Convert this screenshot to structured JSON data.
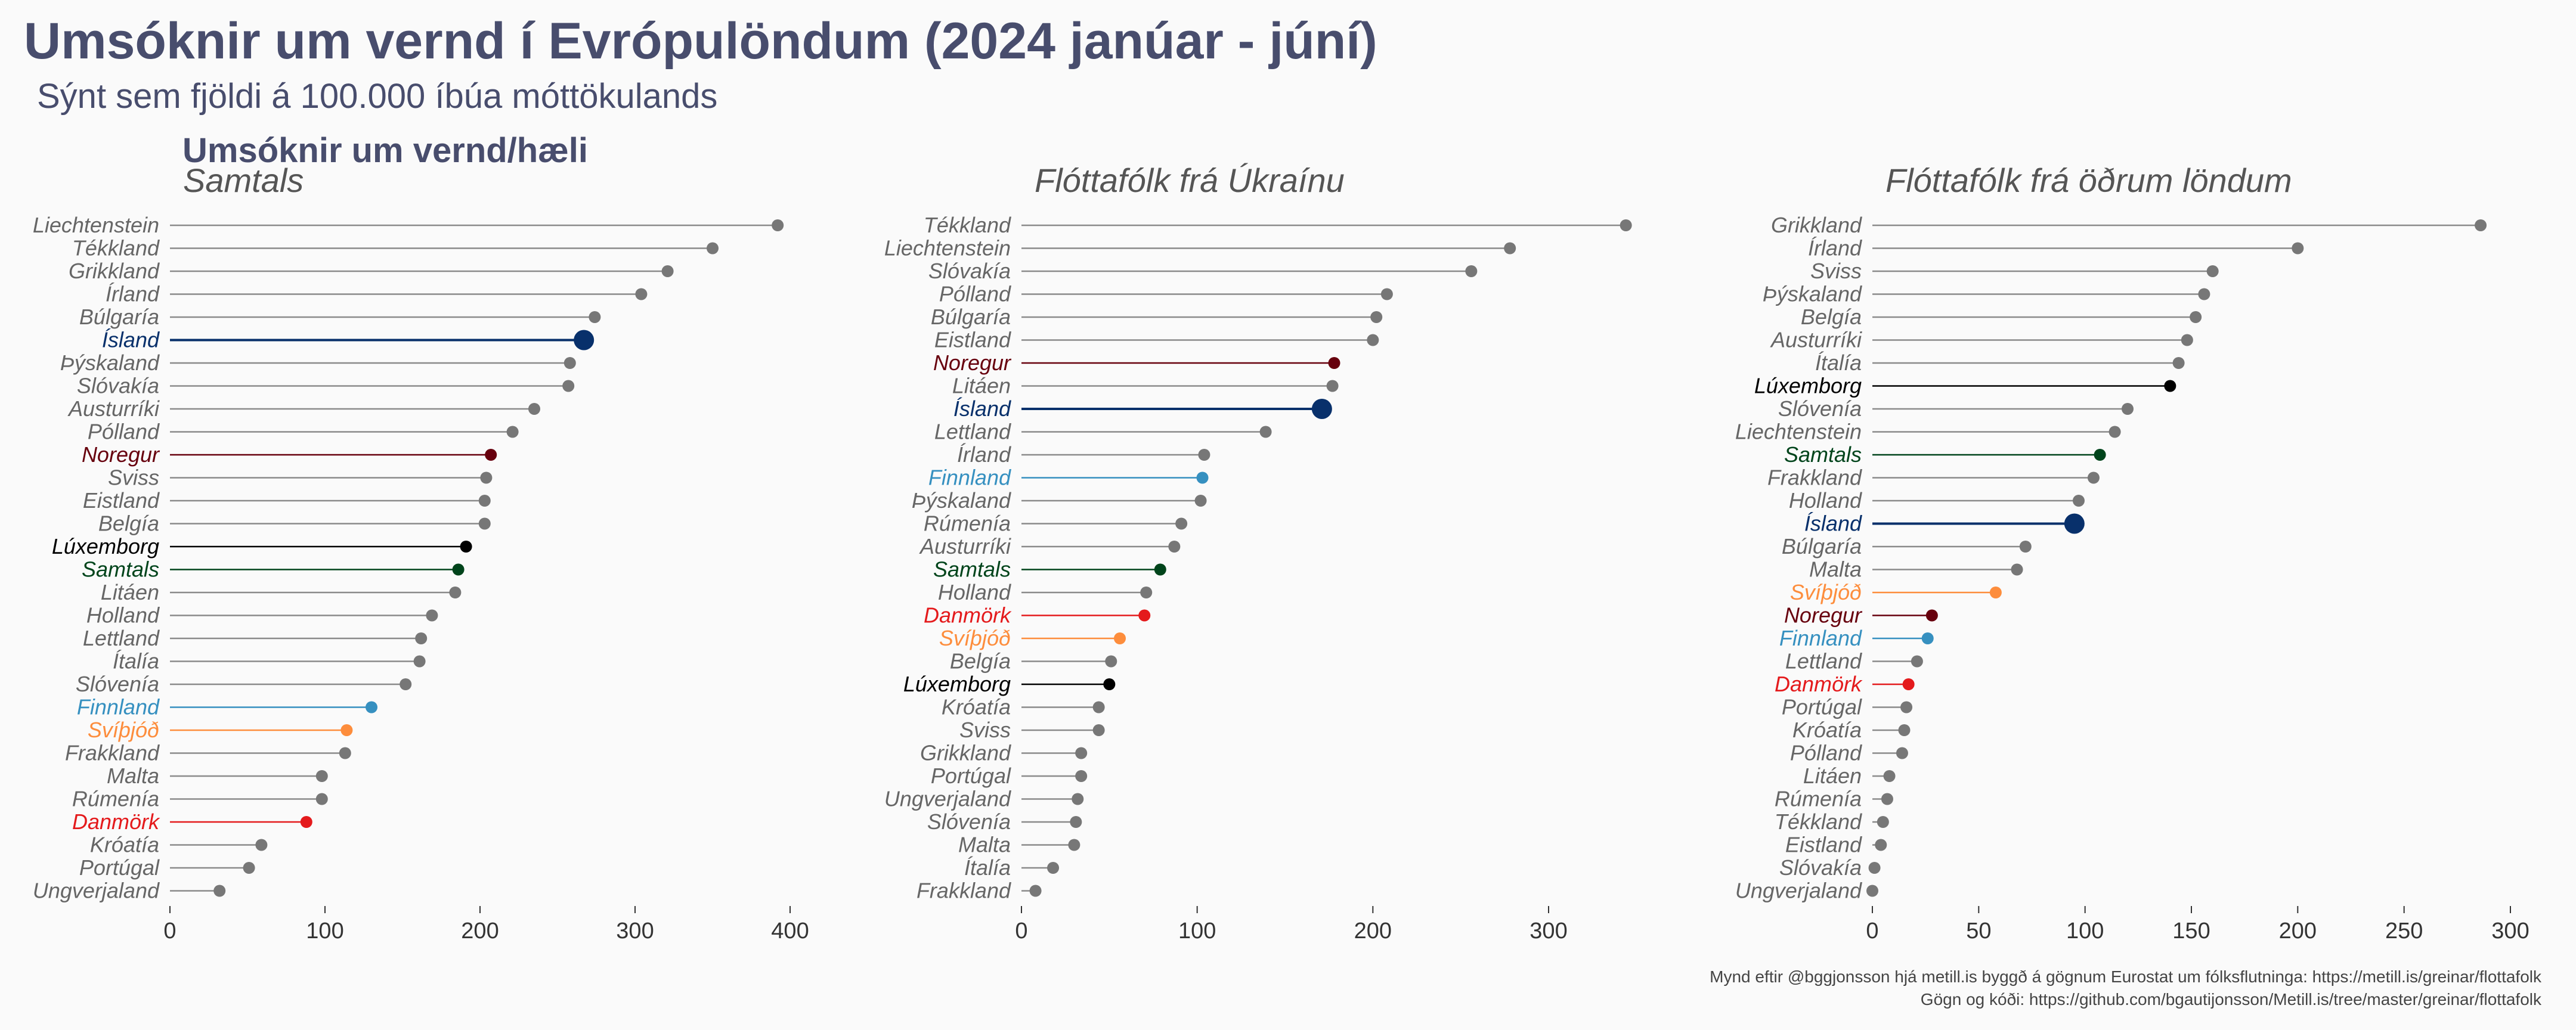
{
  "title": "Umsóknir um vernd í Evrópulöndum (2024 janúar - júní)",
  "subtitle": "Sýnt sem fjöldi á 100.000 íbúa móttökulands",
  "panel_heading": "Umsóknir um vernd/hæli",
  "caption_lines": [
    "Mynd eftir @bggjonsson hjá metill.is byggð á gögnum Eurostat um fólksflutninga: https://metill.is/greinar/flottafolk",
    "Gögn og kóði: https://github.com/bgautijonsson/Metill.is/tree/master/greinar/flottafolk"
  ],
  "colors": {
    "default": "#777777",
    "Ísland": "#08306b",
    "Noregur": "#67000d",
    "Lúxemborg": "#000000",
    "Samtals": "#00441b",
    "Finnland": "#3690c0",
    "Svíþjóð": "#fd8d3c",
    "Danmörk": "#e41a1c"
  },
  "chart_data": [
    {
      "type": "lollipop",
      "title": "Samtals",
      "xlim": [
        0,
        400
      ],
      "xticks": [
        0,
        100,
        200,
        300,
        400
      ],
      "categories": [
        "Liechtenstein",
        "Tékkland",
        "Grikkland",
        "Írland",
        "Búlgaría",
        "Ísland",
        "Þýskaland",
        "Slóvakía",
        "Austurríki",
        "Pólland",
        "Noregur",
        "Sviss",
        "Eistland",
        "Belgía",
        "Lúxemborg",
        "Samtals",
        "Litáen",
        "Holland",
        "Lettland",
        "Ítalía",
        "Slóvenía",
        "Finnland",
        "Svíþjóð",
        "Frakkland",
        "Malta",
        "Rúmenía",
        "Danmörk",
        "Króatía",
        "Portúgal",
        "Ungverjaland"
      ],
      "values": [
        392,
        350,
        321,
        304,
        274,
        267,
        258,
        257,
        235,
        221,
        207,
        204,
        203,
        203,
        191,
        186,
        184,
        169,
        162,
        161,
        152,
        130,
        114,
        113,
        98,
        98,
        88,
        59,
        51,
        32
      ]
    },
    {
      "type": "lollipop",
      "title": "Flóttafólk frá Úkraínu",
      "xlim": [
        0,
        300
      ],
      "xticks": [
        0,
        100,
        200,
        300
      ],
      "categories": [
        "Tékkland",
        "Liechtenstein",
        "Slóvakía",
        "Pólland",
        "Búlgaría",
        "Eistland",
        "Noregur",
        "Litáen",
        "Ísland",
        "Lettland",
        "Írland",
        "Finnland",
        "Þýskaland",
        "Rúmenía",
        "Austurríki",
        "Samtals",
        "Holland",
        "Danmörk",
        "Svíþjóð",
        "Belgía",
        "Lúxemborg",
        "Króatía",
        "Sviss",
        "Grikkland",
        "Portúgal",
        "Ungverjaland",
        "Slóvenía",
        "Malta",
        "Ítalía",
        "Frakkland"
      ],
      "values": [
        344,
        278,
        256,
        208,
        202,
        200,
        178,
        177,
        171,
        139,
        104,
        103,
        102,
        91,
        87,
        79,
        71,
        70,
        56,
        51,
        50,
        44,
        44,
        34,
        34,
        32,
        31,
        30,
        18,
        8
      ]
    },
    {
      "type": "lollipop",
      "title": "Flóttafólk frá öðrum löndum",
      "xlim": [
        0,
        300
      ],
      "xticks": [
        0,
        50,
        100,
        150,
        200,
        250,
        300
      ],
      "categories": [
        "Grikkland",
        "Írland",
        "Sviss",
        "Þýskaland",
        "Belgía",
        "Austurríki",
        "Ítalía",
        "Lúxemborg",
        "Slóvenía",
        "Liechtenstein",
        "Samtals",
        "Frakkland",
        "Holland",
        "Ísland",
        "Búlgaría",
        "Malta",
        "Svíþjóð",
        "Noregur",
        "Finnland",
        "Lettland",
        "Danmörk",
        "Portúgal",
        "Króatía",
        "Pólland",
        "Litáen",
        "Rúmenía",
        "Tékkland",
        "Eistland",
        "Slóvakía",
        "Ungverjaland"
      ],
      "values": [
        286,
        200,
        160,
        156,
        152,
        148,
        144,
        140,
        120,
        114,
        107,
        104,
        97,
        95,
        72,
        68,
        58,
        28,
        26,
        21,
        17,
        16,
        15,
        14,
        8,
        7,
        5,
        4,
        1,
        0
      ]
    }
  ]
}
